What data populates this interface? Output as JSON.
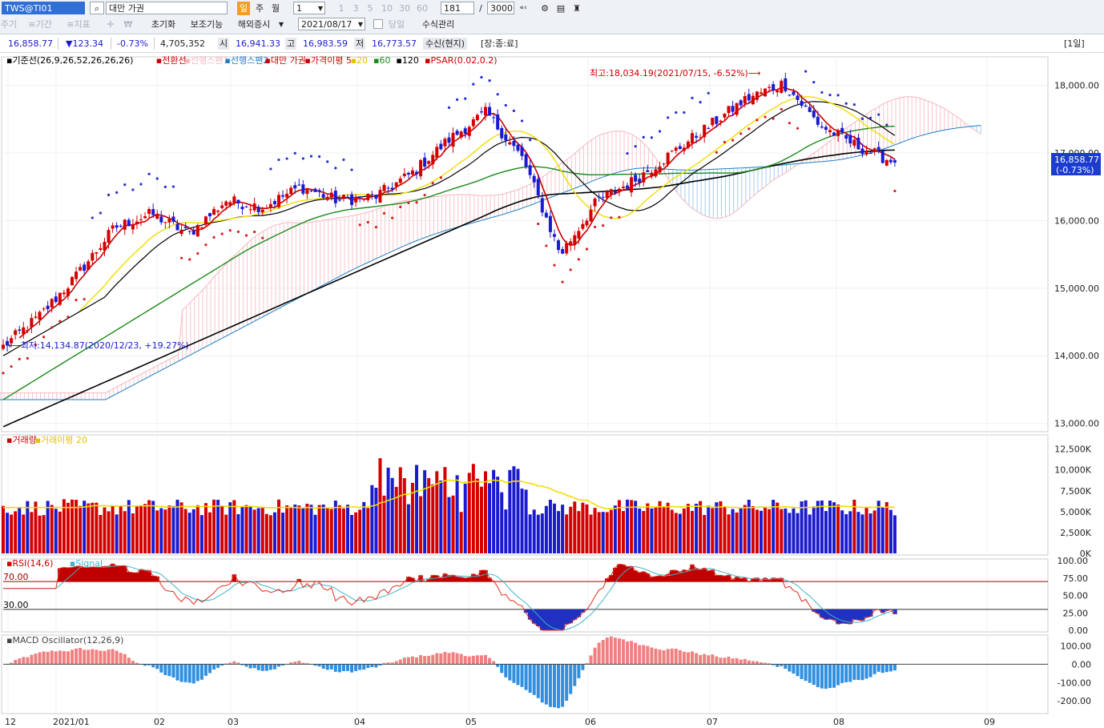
{
  "toolbar": {
    "symbol": "TWS@TI01",
    "name": "대만 가권",
    "period_day": "일",
    "period_week": "주",
    "period_month": "월",
    "period_count": "1",
    "interval_buttons": [
      "1",
      "3",
      "5",
      "10",
      "30",
      "60"
    ],
    "visible_count": "181",
    "slash": "/",
    "total_count": "3000",
    "tab1": "주기",
    "tab2": "≡기간",
    "tab3": "≡지표",
    "reset_label": "초기화",
    "aux_label": "보조기능",
    "overseas_label": "해외증시",
    "date_value": "2021/08/17",
    "today_label": "당일",
    "manual_label": "수식관리"
  },
  "quote": {
    "price": "16,858.77",
    "change": "▼123.34",
    "change_pct": "-0.73%",
    "volume": "4,705,352",
    "open_label": "시",
    "open": "16,941.33",
    "high_label": "고",
    "high": "16,983.59",
    "low_label": "저",
    "low": "16,773.57",
    "receive": "수신(현지)",
    "market_state": "[장:종:료]",
    "period_tag": "[1일]"
  },
  "legend_price": [
    {
      "text": "기준선(26,9,26,52,26,26,26)",
      "color": "#000000"
    },
    {
      "text": "전환선",
      "color": "#cc0000"
    },
    {
      "text": "선행스팬1",
      "color": "#f7b7c0"
    },
    {
      "text": "선행스팬2",
      "color": "#1e7fc7"
    },
    {
      "text": "대만 가권",
      "color": "#cc0000"
    },
    {
      "text": "가격이평 5",
      "color": "#cc0000"
    },
    {
      "text": "20",
      "color": "#e6c200"
    },
    {
      "text": "60",
      "color": "#1a8a1a"
    },
    {
      "text": "120",
      "color": "#000000"
    },
    {
      "text": "PSAR(0.02,0.2)",
      "color": "#cc0000"
    }
  ],
  "legend_volume": [
    {
      "text": "거래량",
      "color": "#cc0000"
    },
    {
      "text": "거래이평 20",
      "color": "#e6c200"
    }
  ],
  "legend_rsi": [
    {
      "text": "RSI(14,6)",
      "color": "#cc0000"
    },
    {
      "text": "Signal",
      "color": "#3fb4c8"
    }
  ],
  "legend_macd": [
    {
      "text": "MACD Oscillator(12,26,9)",
      "color": "#444444"
    }
  ],
  "annotations": {
    "high": "최고:18,034.19(2021/07/15, -6.52%)⟶",
    "low": "⟵최저:14,134.87(2020/12/23, +19.27%)",
    "last_price": "16,858.77",
    "last_pct": "(-0.73%)",
    "rsi_upper": "70.00",
    "rsi_lower": "30.00"
  },
  "chart_data": [
    {
      "type": "candlestick",
      "ylim": [
        12900,
        18400
      ],
      "yticks": [
        "18,000.00",
        "17,000.00",
        "16,000.00",
        "15,000.00",
        "14,000.00",
        "13,000.00"
      ],
      "ytick_values": [
        18000,
        17000,
        16000,
        15000,
        14000,
        13000
      ],
      "xtick_labels": [
        "12",
        "2021/01",
        "02",
        "03",
        "04",
        "05",
        "06",
        "07",
        "08",
        "09"
      ],
      "closes_sample": [
        14135,
        14600,
        15200,
        15900,
        16100,
        15800,
        16300,
        16200,
        16500,
        16300,
        16350,
        16700,
        17200,
        17600,
        16900,
        15500,
        16300,
        16600,
        17000,
        17400,
        17800,
        18034,
        17400,
        17100,
        16858.77
      ],
      "last_close": 16858.77
    },
    {
      "type": "bar",
      "name": "volume",
      "yticks": [
        "12,500K",
        "10,000K",
        "7,500K",
        "5,000K",
        "2,500K",
        "0K"
      ],
      "ytick_values": [
        12500,
        10000,
        7500,
        5000,
        2500,
        0
      ]
    },
    {
      "type": "area",
      "name": "rsi",
      "yticks": [
        "100.00",
        "75.00",
        "50.00",
        "25.00",
        "0.00"
      ],
      "ytick_values": [
        100,
        75,
        50,
        25,
        0
      ],
      "levels": [
        70,
        30
      ]
    },
    {
      "type": "bar",
      "name": "macd-oscillator",
      "yticks": [
        "100.00",
        "0.00",
        "-100.00",
        "-200.00"
      ],
      "ytick_values": [
        100,
        0,
        -100,
        -200
      ]
    }
  ],
  "colors": {
    "up": "#d40000",
    "down": "#1a1ad0",
    "ma5": "#cc0000",
    "ma20": "#f0dd00",
    "ma60": "#1a8a1a",
    "ma120": "#000000",
    "kijun": "#000000",
    "span1": "#f7b7c0",
    "span2": "#1e7fc7",
    "psar_up": "#d42020",
    "psar_dn": "#2030d0",
    "rsi": "#e03020",
    "rsi_sig": "#3fb4c8",
    "macd_pos": "#f08080",
    "macd_neg": "#2f8fe0"
  }
}
